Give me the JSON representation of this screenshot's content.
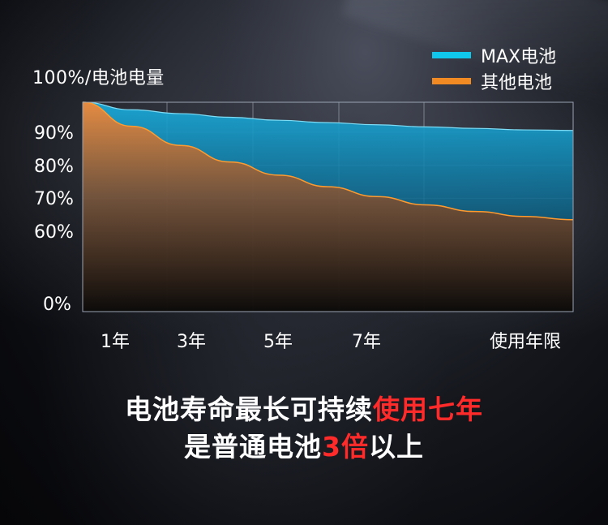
{
  "chart_data": {
    "type": "area",
    "ylabel": "100%/电池电量",
    "yticks": [
      "90%",
      "80%",
      "70%",
      "60%",
      "0%"
    ],
    "xticks": [
      "1年",
      "3年",
      "5年",
      "7年",
      "使用年限"
    ],
    "grid": true,
    "legend_position": "top-right",
    "series": [
      {
        "name": "MAX电池",
        "color": "#10c8ec",
        "points": [
          [
            0,
            100
          ],
          [
            1,
            97.5
          ],
          [
            2,
            96.2
          ],
          [
            3,
            95
          ],
          [
            4,
            94
          ],
          [
            5,
            93.2
          ],
          [
            6,
            92.5
          ],
          [
            7,
            91.8
          ],
          [
            8,
            91.3
          ],
          [
            9,
            90.8
          ],
          [
            10,
            90.6
          ]
        ]
      },
      {
        "name": "其他电池",
        "color": "#f28a24",
        "points": [
          [
            0,
            100
          ],
          [
            1,
            92
          ],
          [
            2,
            86
          ],
          [
            3,
            81
          ],
          [
            4,
            77
          ],
          [
            5,
            73.5
          ],
          [
            6,
            70.5
          ],
          [
            7,
            68
          ],
          [
            8,
            66
          ],
          [
            9,
            64.5
          ],
          [
            10,
            63.5
          ]
        ]
      }
    ]
  },
  "headline": {
    "line1_white": "电池寿命最长可持续",
    "line1_red": "使用七年",
    "line2_white_a": "是普通电池",
    "line2_red": "3倍",
    "line2_white_b": "以上"
  },
  "colors": {
    "accent_red": "#ff2a2a"
  }
}
